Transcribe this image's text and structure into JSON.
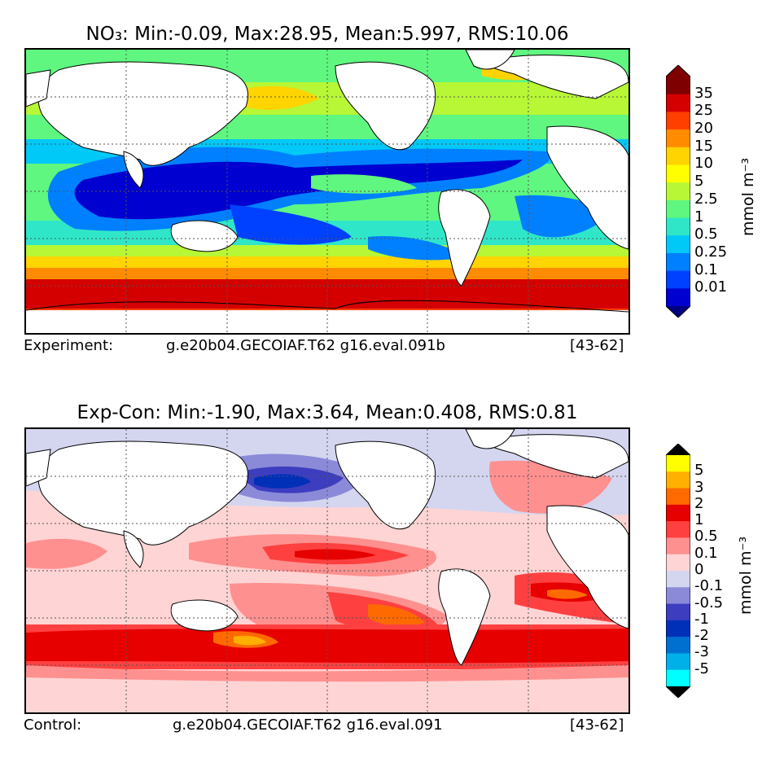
{
  "panels": [
    {
      "title": "NO₃: Min:-0.09, Max:28.95, Mean:5.997, RMS:10.06",
      "footer": {
        "label": "Experiment:",
        "case": "g.e20b04.GECOIAF.T62 g16.eval.091b",
        "years": "[43-62]"
      },
      "colorbar": {
        "unit": "mmol m⁻³",
        "ticks": [
          "35",
          "25",
          "20",
          "15",
          "10",
          "5",
          "2.5",
          "1",
          "0.5",
          "0.25",
          "0.1",
          "0.01"
        ],
        "colors": [
          "#7f0000",
          "#d40000",
          "#ff3f00",
          "#ff8c00",
          "#ffd400",
          "#ffff00",
          "#b7f735",
          "#5ff77f",
          "#2fe7c8",
          "#00c8f7",
          "#0080ff",
          "#0040ff",
          "#0000d0"
        ],
        "low_color": "#000080",
        "high_color": "#7f0000"
      }
    },
    {
      "title": "Exp-Con: Min:-1.90, Max:3.64, Mean:0.408, RMS:0.81",
      "footer": {
        "label": "Control:",
        "case": "g.e20b04.GECOIAF.T62 g16.eval.091",
        "years": "[43-62]"
      },
      "colorbar": {
        "unit": "mmol m⁻³",
        "ticks": [
          "5",
          "3",
          "2",
          "1",
          "0.5",
          "0.1",
          "0",
          "-0.1",
          "-0.5",
          "-1",
          "-2",
          "-3",
          "-5"
        ],
        "colors": [
          "#ffff00",
          "#ffb000",
          "#ff6a00",
          "#e60000",
          "#ff4040",
          "#ff9090",
          "#ffd4d4",
          "#d4d6f0",
          "#8a8ad8",
          "#3d3dc0",
          "#0030b8",
          "#0070d0",
          "#00b0e8",
          "#00ffff"
        ],
        "low_color": "#000000",
        "high_color": "#000000"
      }
    }
  ]
}
